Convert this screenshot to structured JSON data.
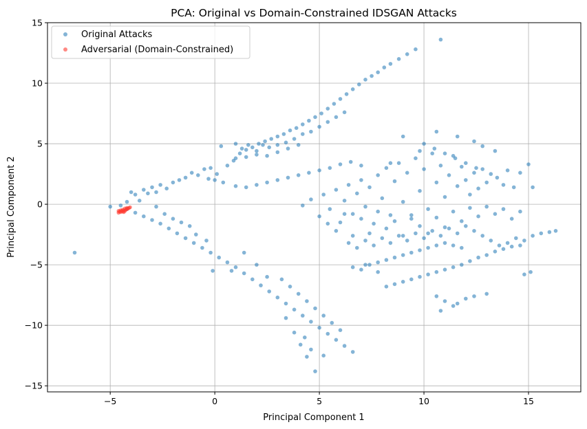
{
  "chart_data": {
    "type": "scatter",
    "title": "PCA: Original vs Domain-Constrained IDSGAN Attacks",
    "xlabel": "Principal Component 1",
    "ylabel": "Principal Component 2",
    "xlim": [
      -8,
      17.5
    ],
    "ylim": [
      -15.5,
      15
    ],
    "xticks": [
      -5,
      0,
      5,
      10,
      15
    ],
    "yticks": [
      -15,
      -10,
      -5,
      0,
      5,
      10,
      15
    ],
    "grid": true,
    "legend_position": "top-left",
    "series": [
      {
        "name": "Original Attacks",
        "color": "#1f77b4",
        "opacity": 0.55,
        "points": [
          [
            -6.7,
            -4.0
          ],
          [
            -5.0,
            -0.2
          ],
          [
            -4.5,
            -0.1
          ],
          [
            -4.2,
            0.2
          ],
          [
            -4.0,
            1.0
          ],
          [
            -3.8,
            0.8
          ],
          [
            -3.6,
            0.3
          ],
          [
            -3.4,
            1.2
          ],
          [
            -3.2,
            0.9
          ],
          [
            -3.0,
            1.4
          ],
          [
            -2.8,
            1.0
          ],
          [
            -2.6,
            1.6
          ],
          [
            -2.3,
            1.3
          ],
          [
            -2.0,
            1.8
          ],
          [
            -1.7,
            2.0
          ],
          [
            -1.4,
            2.2
          ],
          [
            -1.1,
            2.6
          ],
          [
            -0.8,
            2.4
          ],
          [
            -0.5,
            2.9
          ],
          [
            -0.2,
            3.0
          ],
          [
            0.1,
            2.5
          ],
          [
            0.3,
            4.8
          ],
          [
            0.6,
            3.2
          ],
          [
            0.9,
            3.6
          ],
          [
            1.2,
            4.2
          ],
          [
            1.5,
            4.5
          ],
          [
            1.8,
            4.7
          ],
          [
            2.1,
            5.0
          ],
          [
            2.4,
            5.2
          ],
          [
            2.7,
            5.4
          ],
          [
            3.0,
            5.6
          ],
          [
            3.3,
            5.8
          ],
          [
            3.6,
            6.1
          ],
          [
            3.9,
            6.3
          ],
          [
            4.2,
            6.6
          ],
          [
            4.5,
            6.9
          ],
          [
            4.8,
            7.2
          ],
          [
            5.1,
            7.5
          ],
          [
            5.4,
            7.9
          ],
          [
            5.7,
            8.3
          ],
          [
            6.0,
            8.7
          ],
          [
            6.3,
            9.1
          ],
          [
            6.6,
            9.5
          ],
          [
            6.9,
            9.9
          ],
          [
            7.2,
            10.3
          ],
          [
            7.5,
            10.6
          ],
          [
            7.8,
            10.9
          ],
          [
            8.1,
            11.3
          ],
          [
            8.4,
            11.6
          ],
          [
            8.8,
            12.0
          ],
          [
            9.2,
            12.4
          ],
          [
            9.6,
            12.8
          ],
          [
            10.8,
            13.6
          ],
          [
            1.0,
            5.0
          ],
          [
            1.3,
            4.6
          ],
          [
            1.6,
            4.9
          ],
          [
            2.0,
            4.4
          ],
          [
            2.3,
            4.9
          ],
          [
            2.6,
            4.7
          ],
          [
            3.0,
            4.9
          ],
          [
            3.4,
            5.1
          ],
          [
            3.8,
            5.4
          ],
          [
            4.2,
            5.8
          ],
          [
            4.6,
            6.0
          ],
          [
            5.0,
            6.4
          ],
          [
            5.4,
            6.8
          ],
          [
            5.8,
            7.2
          ],
          [
            6.2,
            7.6
          ],
          [
            1.0,
            3.8
          ],
          [
            1.5,
            3.9
          ],
          [
            2.0,
            4.1
          ],
          [
            2.5,
            4.0
          ],
          [
            3.0,
            4.3
          ],
          [
            3.5,
            4.6
          ],
          [
            4.0,
            4.9
          ],
          [
            -0.3,
            2.1
          ],
          [
            0.0,
            2.0
          ],
          [
            0.4,
            1.8
          ],
          [
            1.0,
            1.5
          ],
          [
            1.5,
            1.4
          ],
          [
            2.0,
            1.6
          ],
          [
            2.5,
            1.8
          ],
          [
            3.0,
            2.0
          ],
          [
            3.5,
            2.2
          ],
          [
            4.0,
            2.4
          ],
          [
            4.5,
            2.6
          ],
          [
            5.0,
            2.8
          ],
          [
            5.5,
            3.0
          ],
          [
            6.0,
            3.3
          ],
          [
            6.5,
            3.5
          ],
          [
            7.0,
            3.2
          ],
          [
            -4.2,
            -0.4
          ],
          [
            -3.8,
            -0.7
          ],
          [
            -3.4,
            -1.0
          ],
          [
            -3.0,
            -1.3
          ],
          [
            -2.6,
            -1.6
          ],
          [
            -2.2,
            -2.0
          ],
          [
            -1.8,
            -2.4
          ],
          [
            -1.4,
            -2.8
          ],
          [
            -1.0,
            -3.2
          ],
          [
            -0.6,
            -3.6
          ],
          [
            -0.2,
            -4.0
          ],
          [
            0.2,
            -4.4
          ],
          [
            0.6,
            -4.8
          ],
          [
            1.0,
            -5.2
          ],
          [
            1.4,
            -5.7
          ],
          [
            1.8,
            -6.2
          ],
          [
            2.2,
            -6.7
          ],
          [
            2.6,
            -7.2
          ],
          [
            3.0,
            -7.7
          ],
          [
            3.4,
            -8.2
          ],
          [
            3.8,
            -8.7
          ],
          [
            4.2,
            -9.2
          ],
          [
            4.6,
            -9.7
          ],
          [
            5.0,
            -10.2
          ],
          [
            5.4,
            -10.7
          ],
          [
            5.8,
            -11.2
          ],
          [
            6.2,
            -11.7
          ],
          [
            6.6,
            -12.2
          ],
          [
            3.2,
            -6.2
          ],
          [
            3.6,
            -6.8
          ],
          [
            4.0,
            -7.4
          ],
          [
            4.4,
            -8.0
          ],
          [
            4.8,
            -8.6
          ],
          [
            5.2,
            -9.2
          ],
          [
            5.6,
            -9.8
          ],
          [
            6.0,
            -10.4
          ],
          [
            -0.1,
            -5.5
          ],
          [
            0.8,
            -5.5
          ],
          [
            1.4,
            -4.0
          ],
          [
            2.0,
            -5.0
          ],
          [
            2.5,
            -6.0
          ],
          [
            3.4,
            -9.4
          ],
          [
            3.8,
            -10.6
          ],
          [
            4.1,
            -11.6
          ],
          [
            4.4,
            -12.6
          ],
          [
            4.8,
            -13.8
          ],
          [
            4.6,
            -12.0
          ],
          [
            4.3,
            -11.0
          ],
          [
            5.2,
            -12.5
          ],
          [
            -2.8,
            -0.2
          ],
          [
            -2.4,
            -0.8
          ],
          [
            -2.0,
            -1.2
          ],
          [
            -1.6,
            -1.5
          ],
          [
            -1.2,
            -1.8
          ],
          [
            -0.9,
            -2.5
          ],
          [
            -0.4,
            -3.0
          ],
          [
            4.2,
            -0.1
          ],
          [
            4.6,
            0.4
          ],
          [
            5.0,
            -1.0
          ],
          [
            5.2,
            0.8
          ],
          [
            5.5,
            -0.4
          ],
          [
            5.8,
            1.2
          ],
          [
            6.0,
            -1.5
          ],
          [
            6.2,
            0.3
          ],
          [
            6.4,
            1.6
          ],
          [
            6.6,
            -0.8
          ],
          [
            6.8,
            0.9
          ],
          [
            7.0,
            2.0
          ],
          [
            7.2,
            -0.2
          ],
          [
            7.4,
            1.4
          ],
          [
            7.6,
            -1.6
          ],
          [
            7.8,
            2.4
          ],
          [
            8.0,
            0.5
          ],
          [
            8.2,
            3.0
          ],
          [
            8.4,
            -0.9
          ],
          [
            8.6,
            1.9
          ],
          [
            8.8,
            3.4
          ],
          [
            9.0,
            0.2
          ],
          [
            9.2,
            2.6
          ],
          [
            9.4,
            -1.2
          ],
          [
            9.6,
            3.8
          ],
          [
            9.8,
            1.1
          ],
          [
            10.0,
            2.9
          ],
          [
            10.2,
            -0.4
          ],
          [
            10.4,
            4.2
          ],
          [
            10.6,
            1.8
          ],
          [
            10.8,
            3.2
          ],
          [
            11.0,
            0.6
          ],
          [
            11.2,
            2.4
          ],
          [
            11.4,
            4.0
          ],
          [
            11.6,
            1.5
          ],
          [
            11.8,
            3.1
          ],
          [
            12.0,
            2.0
          ],
          [
            12.2,
            0.8
          ],
          [
            12.4,
            2.6
          ],
          [
            12.6,
            1.3
          ],
          [
            12.8,
            2.9
          ],
          [
            13.0,
            1.8
          ],
          [
            13.2,
            2.5
          ],
          [
            13.5,
            2.2
          ],
          [
            13.8,
            1.6
          ],
          [
            14.0,
            2.8
          ],
          [
            14.3,
            1.4
          ],
          [
            14.6,
            2.6
          ],
          [
            15.0,
            3.3
          ],
          [
            15.2,
            1.4
          ],
          [
            10.0,
            5.0
          ],
          [
            10.5,
            4.6
          ],
          [
            11.0,
            4.2
          ],
          [
            11.5,
            3.8
          ],
          [
            12.0,
            3.4
          ],
          [
            12.5,
            3.0
          ],
          [
            5.4,
            -1.6
          ],
          [
            5.8,
            -2.2
          ],
          [
            6.2,
            -0.8
          ],
          [
            6.6,
            -2.6
          ],
          [
            7.0,
            -1.2
          ],
          [
            7.4,
            -2.4
          ],
          [
            7.8,
            -0.6
          ],
          [
            8.2,
            -2.0
          ],
          [
            8.6,
            -1.4
          ],
          [
            9.0,
            -2.6
          ],
          [
            9.4,
            -0.9
          ],
          [
            9.8,
            -1.8
          ],
          [
            10.2,
            -2.4
          ],
          [
            10.6,
            -1.1
          ],
          [
            11.0,
            -1.9
          ],
          [
            11.4,
            -0.6
          ],
          [
            11.8,
            -1.4
          ],
          [
            12.2,
            -0.3
          ],
          [
            12.6,
            -1.0
          ],
          [
            13.0,
            -0.2
          ],
          [
            13.4,
            -0.8
          ],
          [
            13.8,
            -0.4
          ],
          [
            14.2,
            -1.2
          ],
          [
            14.6,
            -0.6
          ],
          [
            6.4,
            -3.2
          ],
          [
            6.8,
            -3.6
          ],
          [
            7.2,
            -3.0
          ],
          [
            7.6,
            -3.4
          ],
          [
            8.0,
            -2.8
          ],
          [
            8.4,
            -3.2
          ],
          [
            8.8,
            -2.6
          ],
          [
            9.2,
            -3.0
          ],
          [
            9.6,
            -2.4
          ],
          [
            10.0,
            -2.8
          ],
          [
            10.4,
            -2.2
          ],
          [
            10.8,
            -2.6
          ],
          [
            11.2,
            -2.0
          ],
          [
            11.6,
            -2.4
          ],
          [
            12.0,
            -1.8
          ],
          [
            12.4,
            -2.2
          ],
          [
            12.8,
            -2.6
          ],
          [
            13.2,
            -3.0
          ],
          [
            13.6,
            -3.4
          ],
          [
            14.0,
            -3.2
          ],
          [
            14.4,
            -2.8
          ],
          [
            14.8,
            -3.0
          ],
          [
            15.2,
            -2.6
          ],
          [
            15.6,
            -2.4
          ],
          [
            16.0,
            -2.3
          ],
          [
            16.3,
            -2.2
          ],
          [
            6.6,
            -5.2
          ],
          [
            7.0,
            -5.4
          ],
          [
            7.4,
            -5.0
          ],
          [
            7.8,
            -4.8
          ],
          [
            8.2,
            -4.6
          ],
          [
            8.6,
            -4.4
          ],
          [
            9.0,
            -4.2
          ],
          [
            9.4,
            -4.0
          ],
          [
            9.8,
            -3.8
          ],
          [
            10.2,
            -3.6
          ],
          [
            10.6,
            -3.4
          ],
          [
            11.0,
            -3.2
          ],
          [
            11.4,
            -3.4
          ],
          [
            11.8,
            -3.6
          ],
          [
            8.2,
            -6.8
          ],
          [
            8.6,
            -6.6
          ],
          [
            9.0,
            -6.4
          ],
          [
            9.4,
            -6.2
          ],
          [
            9.8,
            -6.0
          ],
          [
            10.2,
            -5.8
          ],
          [
            10.6,
            -5.6
          ],
          [
            11.0,
            -5.4
          ],
          [
            11.4,
            -5.2
          ],
          [
            11.8,
            -5.0
          ],
          [
            12.2,
            -4.7
          ],
          [
            12.6,
            -4.4
          ],
          [
            13.0,
            -4.2
          ],
          [
            13.4,
            -3.9
          ],
          [
            13.8,
            -3.7
          ],
          [
            14.2,
            -3.5
          ],
          [
            14.6,
            -3.4
          ],
          [
            14.8,
            -5.8
          ],
          [
            15.1,
            -5.6
          ],
          [
            10.6,
            -7.6
          ],
          [
            11.0,
            -8.0
          ],
          [
            11.4,
            -8.4
          ],
          [
            10.8,
            -8.8
          ],
          [
            11.6,
            -8.2
          ],
          [
            12.0,
            -7.8
          ],
          [
            12.4,
            -7.6
          ],
          [
            13.0,
            -7.4
          ],
          [
            7.2,
            -5.0
          ],
          [
            7.8,
            -5.6
          ],
          [
            10.6,
            6.0
          ],
          [
            11.6,
            5.6
          ],
          [
            12.4,
            5.2
          ],
          [
            12.8,
            4.8
          ],
          [
            13.4,
            4.4
          ],
          [
            9.0,
            5.6
          ],
          [
            8.4,
            3.4
          ],
          [
            9.8,
            4.4
          ]
        ]
      },
      {
        "name": "Adversarial (Domain-Constrained)",
        "color": "#ff3b30",
        "opacity": 0.6,
        "points": [
          [
            -4.6,
            -0.7
          ],
          [
            -4.55,
            -0.6
          ],
          [
            -4.5,
            -0.65
          ],
          [
            -4.45,
            -0.55
          ],
          [
            -4.4,
            -0.6
          ],
          [
            -4.35,
            -0.5
          ],
          [
            -4.3,
            -0.55
          ],
          [
            -4.25,
            -0.45
          ],
          [
            -4.2,
            -0.4
          ],
          [
            -4.15,
            -0.35
          ],
          [
            -4.1,
            -0.3
          ],
          [
            -4.05,
            -0.25
          ],
          [
            -4.5,
            -0.5
          ],
          [
            -4.4,
            -0.45
          ],
          [
            -4.3,
            -0.35
          ],
          [
            -4.2,
            -0.3
          ],
          [
            -4.6,
            -0.55
          ],
          [
            -4.35,
            -0.65
          ]
        ]
      }
    ]
  }
}
